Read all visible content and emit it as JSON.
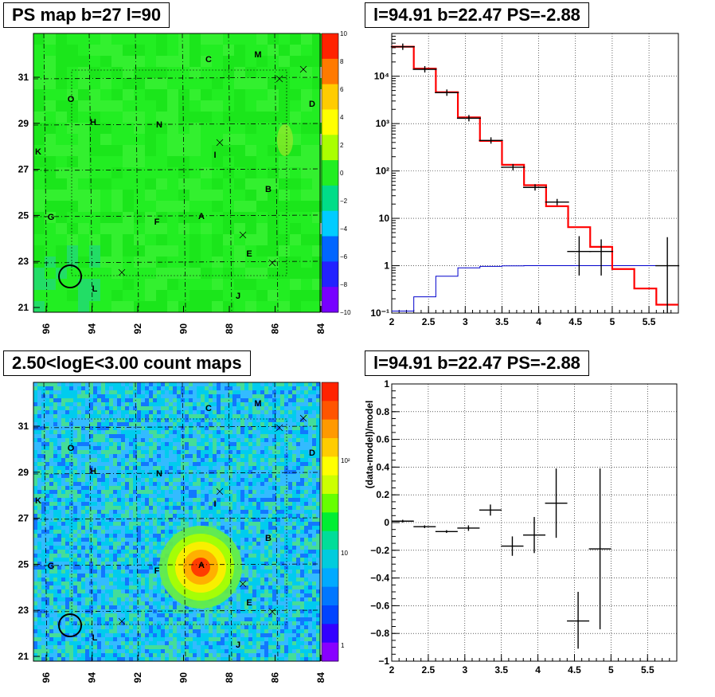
{
  "panels": {
    "ps_map": {
      "title": "PS map b=27 l=90",
      "colorbar_ticks": [
        "10",
        "8",
        "6",
        "4",
        "2",
        "0",
        "−2",
        "−4",
        "−6",
        "−8",
        "−10"
      ],
      "colors": {
        "field": "#22ee22",
        "colorbar": [
          "#ff2200",
          "#ff7a00",
          "#ffcc00",
          "#ffff00",
          "#aaff00",
          "#22ee22",
          "#00dd88",
          "#00ccff",
          "#0066ff",
          "#2222ff",
          "#7700ff"
        ]
      }
    },
    "count_map": {
      "title": "2.50<logE<3.00 count maps",
      "colorbar_ticks": [
        "10²",
        "10",
        "1"
      ],
      "colors": {
        "field": "#33bbff",
        "colorbar": [
          "#ff2200",
          "#ff5500",
          "#ff9900",
          "#ffcc00",
          "#ffff00",
          "#ccff00",
          "#66ff00",
          "#00ee33",
          "#00dd99",
          "#00ccdd",
          "#00aaff",
          "#0077ff",
          "#0044ff",
          "#3300ff",
          "#8800ff"
        ]
      }
    },
    "spectrum": {
      "title": "l=94.91 b=22.47 PS=-2.88"
    },
    "residual": {
      "title": "l=94.91 b=22.47 PS=-2.88"
    }
  },
  "map_axes": {
    "x_ticks": [
      "96",
      "94",
      "92",
      "90",
      "88",
      "86",
      "84"
    ],
    "y_ticks": [
      "31",
      "29",
      "27",
      "25",
      "23",
      "21"
    ]
  },
  "map_labels": [
    "A",
    "B",
    "C",
    "D",
    "E",
    "F",
    "G",
    "H",
    "I",
    "J",
    "K",
    "L",
    "M",
    "N",
    "O"
  ],
  "chart_data": [
    {
      "type": "heatmap",
      "title": "PS map b=27 l=90",
      "x_ticks": [
        96,
        94,
        92,
        90,
        88,
        86,
        84
      ],
      "y_ticks": [
        21,
        23,
        25,
        27,
        29,
        31
      ],
      "colorbar_range": [
        -10,
        10
      ],
      "annotations": [
        "A",
        "B",
        "C",
        "D",
        "E",
        "F",
        "G",
        "H",
        "I",
        "J",
        "K",
        "L",
        "M",
        "N",
        "O"
      ]
    },
    {
      "type": "line",
      "title": "l=94.91 b=22.47 PS=-2.88",
      "xlim": [
        2,
        5.9
      ],
      "ylim": [
        0.1,
        80000
      ],
      "yscale": "log",
      "x_ticks": [
        "2",
        "2.5",
        "3",
        "3.5",
        "4",
        "4.5",
        "5",
        "5.5"
      ],
      "y_ticks": [
        "10⁻¹",
        "1",
        "10",
        "10²",
        "10³",
        "10⁴"
      ],
      "grid": true,
      "series": [
        {
          "role": "model",
          "color": "#ff0000",
          "bin_edges": [
            2.0,
            2.3,
            2.6,
            2.9,
            3.2,
            3.5,
            3.8,
            4.1,
            4.4,
            4.7,
            5.0,
            5.3,
            5.6,
            5.9
          ],
          "values": [
            42000,
            14500,
            4600,
            1350,
            430,
            135,
            50,
            18,
            6.5,
            2.5,
            0.85,
            0.33,
            0.15
          ]
        },
        {
          "role": "source",
          "color": "#0000cc",
          "bin_edges": [
            2.0,
            2.3,
            2.6,
            2.9,
            3.2,
            3.5,
            3.8,
            4.1,
            4.4,
            4.7,
            5.0,
            5.3,
            5.6,
            5.9
          ],
          "values": [
            0.11,
            0.22,
            0.6,
            0.9,
            0.97,
            0.99,
            1.0,
            1.0,
            1.0,
            1.0,
            1.0,
            1.0,
            1.0
          ]
        },
        {
          "role": "data",
          "color": "#000000",
          "x": [
            2.15,
            2.45,
            2.75,
            3.05,
            3.35,
            3.65,
            3.95,
            4.25,
            4.55,
            4.85,
            5.15,
            5.45,
            5.75
          ],
          "values": [
            42000,
            14000,
            4500,
            1300,
            440,
            120,
            45,
            22,
            2,
            2,
            null,
            null,
            1
          ],
          "err_low": [
            null,
            null,
            null,
            null,
            null,
            null,
            null,
            null,
            0.62,
            0.62,
            null,
            null,
            0.1
          ],
          "err_high": [
            null,
            null,
            null,
            null,
            null,
            null,
            null,
            null,
            4.2,
            3.6,
            null,
            null,
            4
          ]
        }
      ]
    },
    {
      "type": "heatmap",
      "title": "2.50<logE<3.00 count maps",
      "x_ticks": [
        96,
        94,
        92,
        90,
        88,
        86,
        84
      ],
      "y_ticks": [
        21,
        23,
        25,
        27,
        29,
        31
      ],
      "colorbar_ticks": [
        "1",
        "10",
        "10²"
      ],
      "annotations": [
        "A",
        "B",
        "C",
        "D",
        "E",
        "F",
        "G",
        "H",
        "I",
        "J",
        "K",
        "L",
        "M",
        "N",
        "O"
      ]
    },
    {
      "type": "scatter",
      "title": "l=94.91 b=22.47 PS=-2.88",
      "ylabel": "(data-model)/model",
      "xlim": [
        2,
        5.9
      ],
      "ylim": [
        -1,
        1
      ],
      "x_ticks": [
        "2",
        "2.5",
        "3",
        "3.5",
        "4",
        "4.5",
        "5",
        "5.5"
      ],
      "y_ticks": [
        "1",
        "0.8",
        "0.6",
        "0.4",
        "0.2",
        "0",
        "−0.2",
        "−0.4",
        "−0.6",
        "−0.8",
        "−1"
      ],
      "grid": true,
      "points": [
        {
          "x": 2.15,
          "y": 0.01,
          "ylo": 0.0,
          "yhi": 0.02
        },
        {
          "x": 2.45,
          "y": -0.03,
          "ylo": -0.04,
          "yhi": -0.02
        },
        {
          "x": 2.75,
          "y": -0.065,
          "ylo": -0.075,
          "yhi": -0.055
        },
        {
          "x": 3.05,
          "y": -0.04,
          "ylo": -0.06,
          "yhi": -0.02
        },
        {
          "x": 3.35,
          "y": 0.09,
          "ylo": 0.05,
          "yhi": 0.13
        },
        {
          "x": 3.65,
          "y": -0.17,
          "ylo": -0.24,
          "yhi": -0.1
        },
        {
          "x": 3.95,
          "y": -0.09,
          "ylo": -0.22,
          "yhi": 0.04
        },
        {
          "x": 4.25,
          "y": 0.14,
          "ylo": -0.11,
          "yhi": 0.39
        },
        {
          "x": 4.55,
          "y": -0.71,
          "ylo": -0.91,
          "yhi": -0.5
        },
        {
          "x": 4.85,
          "y": -0.19,
          "ylo": -0.77,
          "yhi": 0.39
        }
      ]
    }
  ]
}
